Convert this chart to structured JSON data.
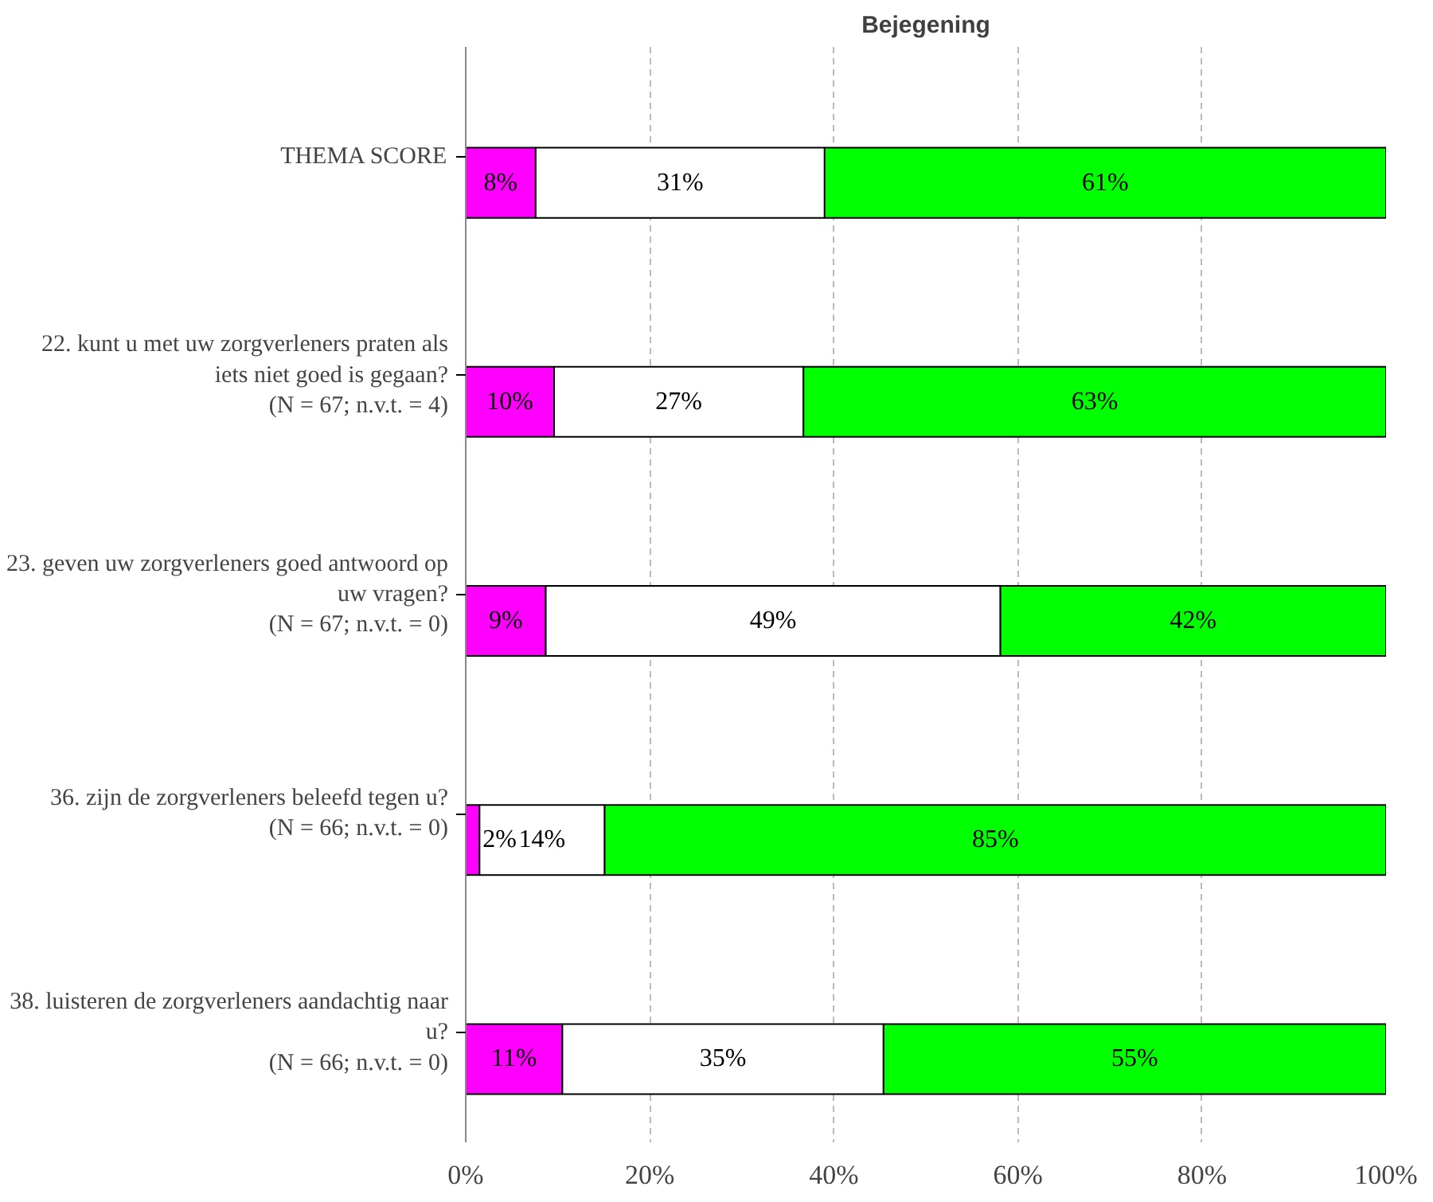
{
  "chart_data": {
    "type": "bar",
    "title": "Bejegening",
    "orientation": "horizontal",
    "stacked": true,
    "categories": [
      "THEMA SCORE",
      "22. kunt u met uw zorgverleners praten als\niets niet goed is gegaan?\n(N = 67; n.v.t. = 4)",
      "23. geven uw zorgverleners goed antwoord op\nuw vragen?\n(N = 67; n.v.t. = 0)",
      "36. zijn de zorgverleners beleefd tegen u?\n(N = 66; n.v.t. = 0)",
      "38. luisteren de zorgverleners aandachtig naar\nu?\n(N = 66; n.v.t. = 0)"
    ],
    "series": [
      {
        "color": "#ff00ff",
        "values": [
          7.6,
          9.6,
          8.7,
          1.5,
          10.5
        ],
        "value_labels": [
          "8%",
          "10%",
          "9%",
          "2%",
          "11%"
        ]
      },
      {
        "color": "#ffffff",
        "values": [
          31.4,
          27.1,
          49.4,
          13.6,
          34.9
        ],
        "value_labels": [
          "31%",
          "27%",
          "49%",
          "14%",
          "35%"
        ]
      },
      {
        "color": "#00ff00",
        "values": [
          61.0,
          63.3,
          41.9,
          84.9,
          54.6
        ],
        "value_labels": [
          "61%",
          "63%",
          "42%",
          "85%",
          "55%"
        ]
      }
    ],
    "xlim": [
      0,
      100
    ],
    "xticks": [
      {
        "value": 0,
        "label": "0%"
      },
      {
        "value": 20,
        "label": "20%"
      },
      {
        "value": 40,
        "label": "40%"
      },
      {
        "value": 60,
        "label": "60%"
      },
      {
        "value": 80,
        "label": "80%"
      },
      {
        "value": 100,
        "label": "100%"
      }
    ],
    "grid": "x"
  }
}
